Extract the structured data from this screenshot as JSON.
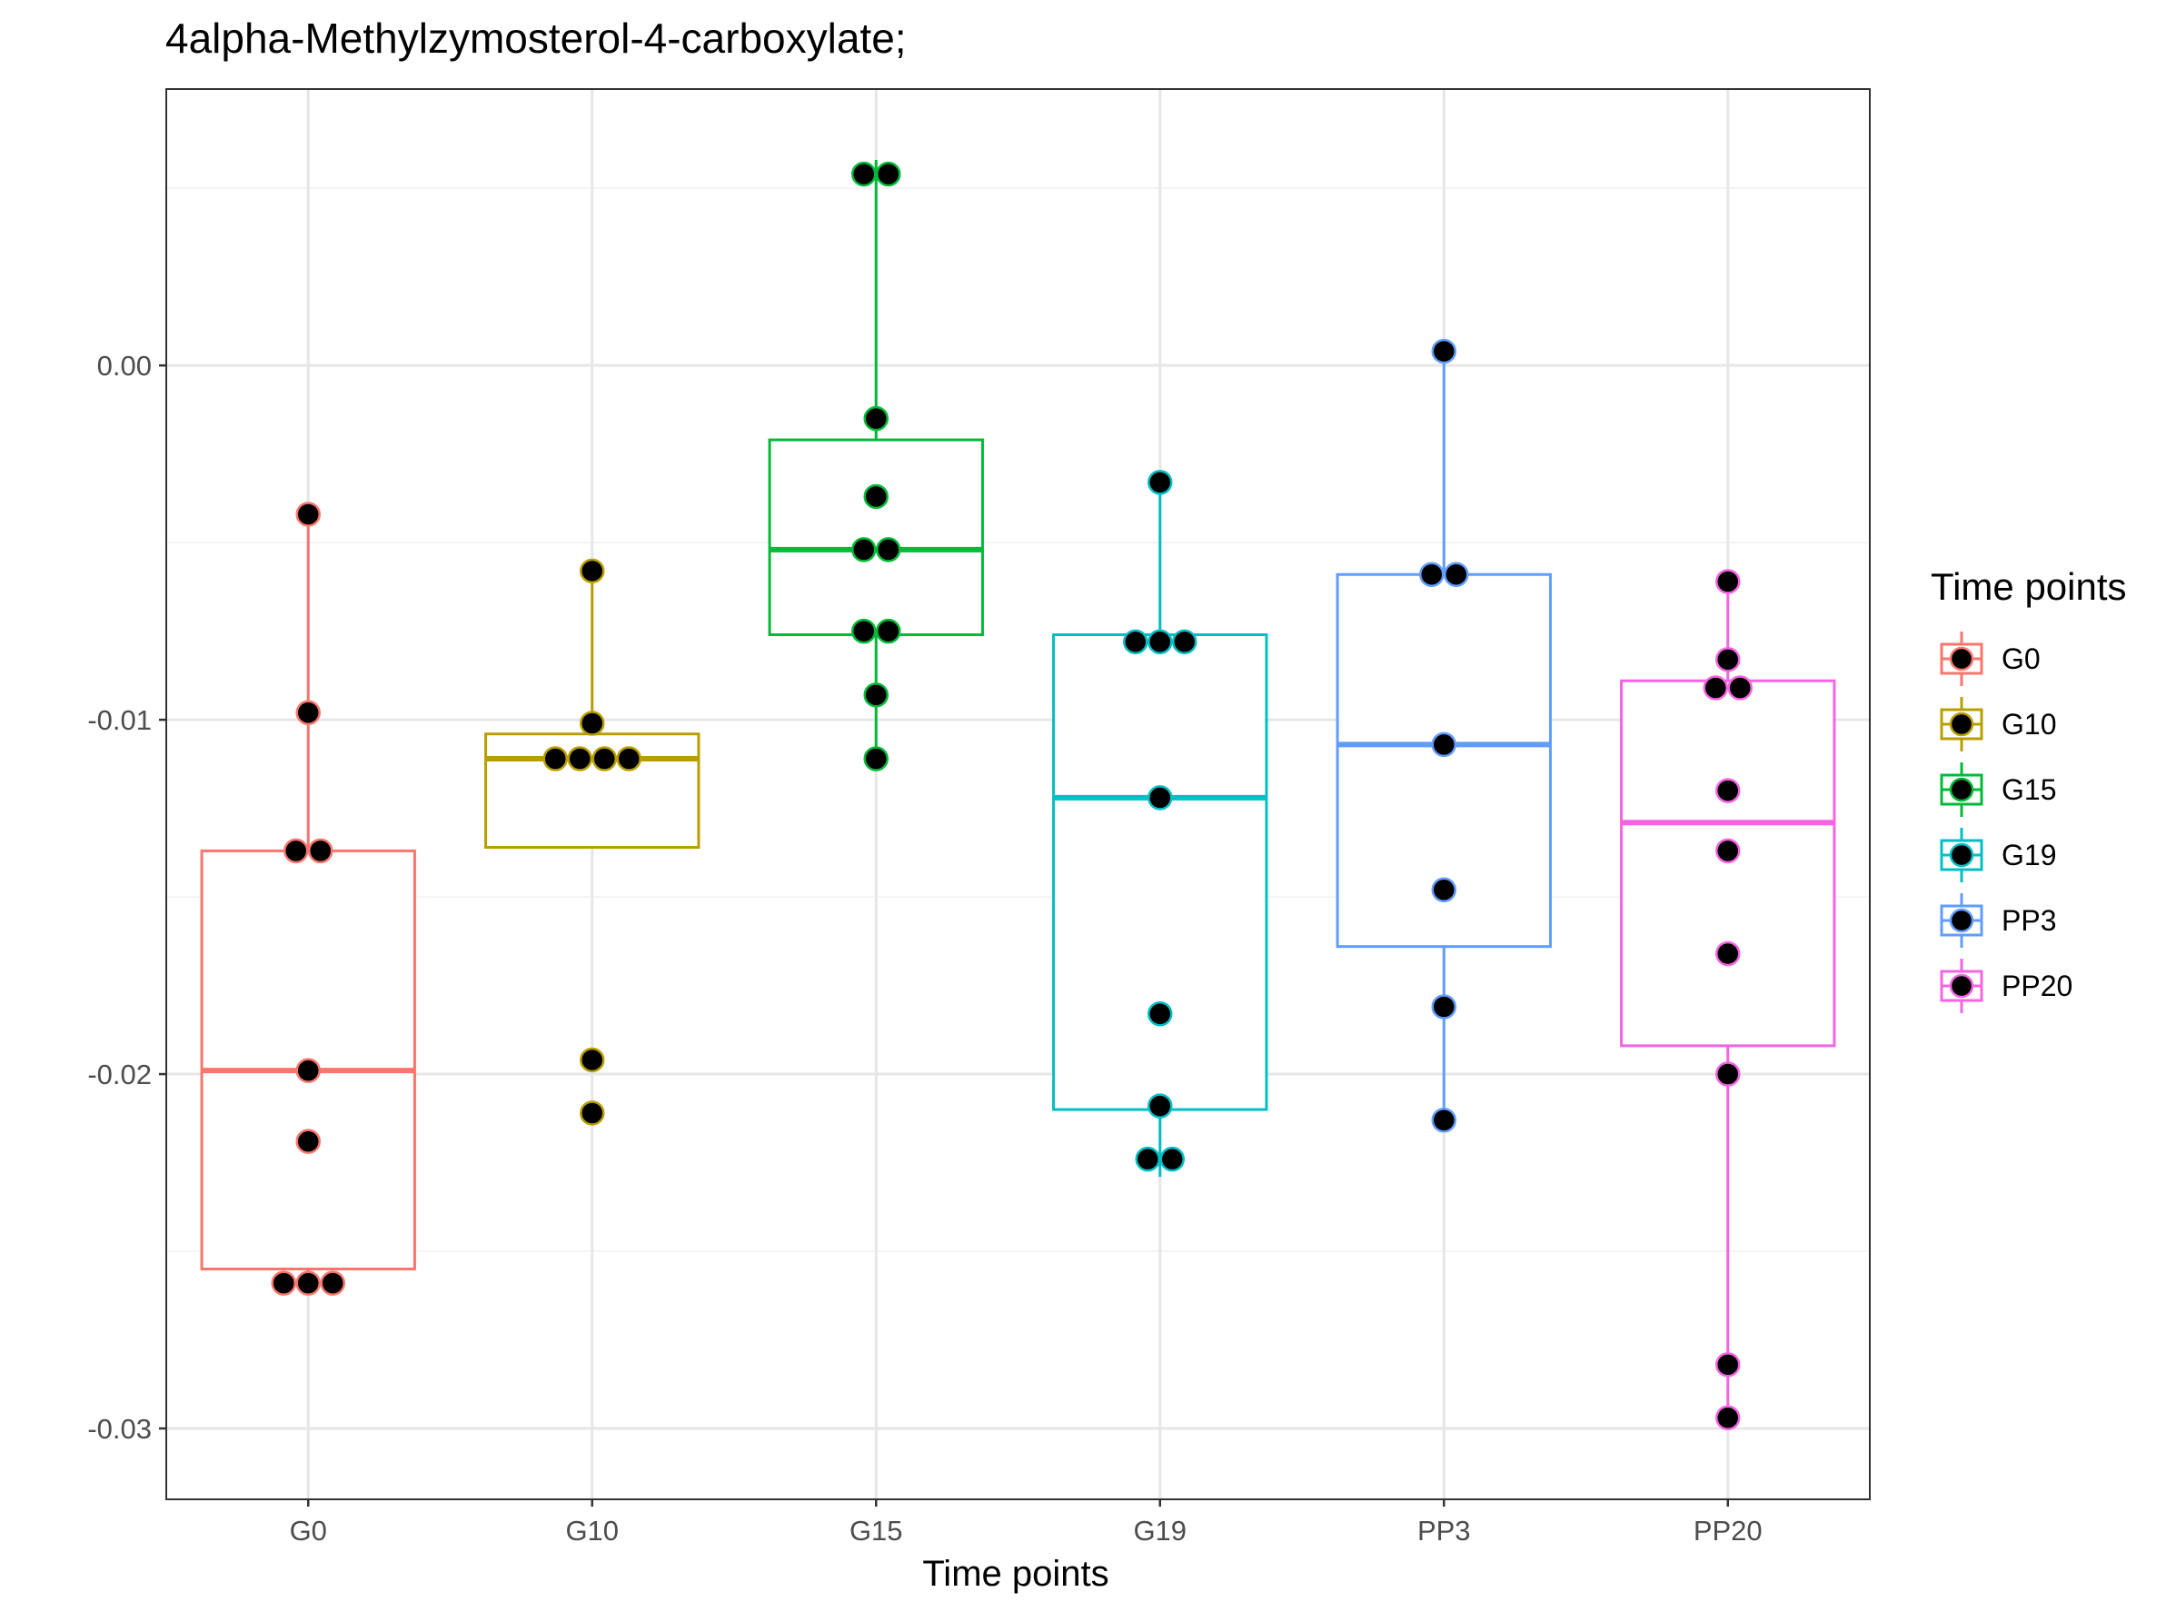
{
  "chart_data": {
    "type": "boxplot",
    "title": "4alpha-Methylzymosterol-4-carboxylate;",
    "xlabel": "Time points",
    "ylabel": "",
    "categories": [
      "G0",
      "G10",
      "G15",
      "G19",
      "PP3",
      "PP20"
    ],
    "ylim": [
      -0.032,
      0.0078
    ],
    "y_ticks": [
      0.0,
      -0.01,
      -0.02,
      -0.03
    ],
    "y_tick_labels": [
      "0.00",
      "-0.01",
      "-0.02",
      "-0.03"
    ],
    "grid": true,
    "legend": {
      "title": "Time points",
      "position": "right"
    },
    "colors": {
      "G0": "#F8766D",
      "G10": "#B79F00",
      "G15": "#00BA38",
      "G19": "#00BFC4",
      "PP3": "#619CFF",
      "PP20": "#F564E3"
    },
    "series": [
      {
        "name": "G0",
        "q1": -0.0255,
        "median": -0.0199,
        "q3": -0.0137,
        "whisker_low": -0.0259,
        "whisker_high": -0.0042,
        "points": [
          -0.0042,
          -0.0098,
          -0.0137,
          -0.0137,
          -0.0199,
          -0.0219,
          -0.0259,
          -0.0259,
          -0.0259
        ]
      },
      {
        "name": "G10",
        "q1": -0.0136,
        "median": -0.0111,
        "q3": -0.0104,
        "whisker_low": -0.0136,
        "whisker_high": -0.0058,
        "points": [
          -0.0058,
          -0.0101,
          -0.0111,
          -0.0111,
          -0.0111,
          -0.0111,
          -0.0196,
          -0.0211
        ]
      },
      {
        "name": "G15",
        "q1": -0.0076,
        "median": -0.0052,
        "q3": -0.0021,
        "whisker_low": -0.0111,
        "whisker_high": 0.0058,
        "points": [
          0.0054,
          0.0054,
          -0.0015,
          -0.0037,
          -0.0052,
          -0.0052,
          -0.0075,
          -0.0075,
          -0.0093,
          -0.0111
        ]
      },
      {
        "name": "G19",
        "q1": -0.021,
        "median": -0.0122,
        "q3": -0.0076,
        "whisker_low": -0.0229,
        "whisker_high": -0.0033,
        "points": [
          -0.0033,
          -0.0078,
          -0.0078,
          -0.0078,
          -0.0122,
          -0.0183,
          -0.0209,
          -0.0224,
          -0.0224
        ]
      },
      {
        "name": "PP3",
        "q1": -0.0164,
        "median": -0.0107,
        "q3": -0.0059,
        "whisker_low": -0.0213,
        "whisker_high": 0.0004,
        "points": [
          0.0004,
          -0.0059,
          -0.0059,
          -0.0107,
          -0.0148,
          -0.0181,
          -0.0213
        ]
      },
      {
        "name": "PP20",
        "q1": -0.0192,
        "median": -0.0129,
        "q3": -0.0089,
        "whisker_low": -0.0297,
        "whisker_high": -0.0061,
        "points": [
          -0.0061,
          -0.0083,
          -0.0091,
          -0.0091,
          -0.012,
          -0.0137,
          -0.0166,
          -0.02,
          -0.0282,
          -0.0297
        ]
      }
    ]
  }
}
